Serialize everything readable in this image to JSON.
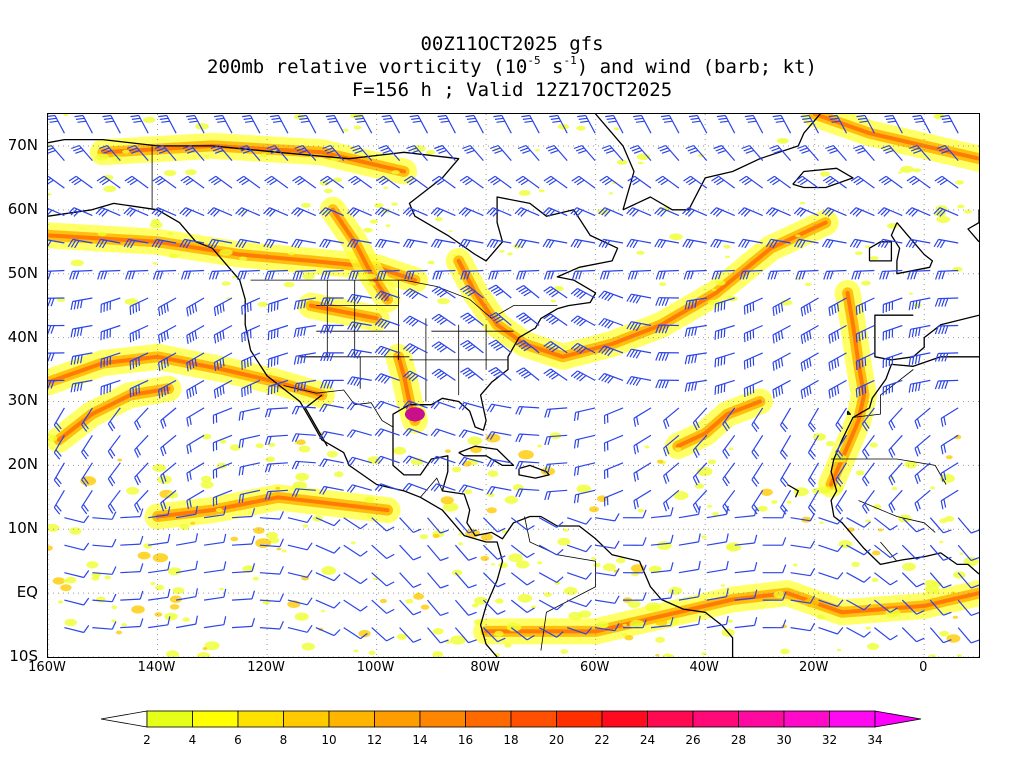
{
  "title": {
    "line1": "00Z11OCT2025 gfs",
    "line2_prefix": "200mb relative vorticity (10",
    "line2_exp1": "-5",
    "line2_mid": " s",
    "line2_exp2": "-1",
    "line2_suffix": ") and wind (barb; kt)",
    "line3": "F=156 h ; Valid 12Z17OCT2025"
  },
  "axes": {
    "lat_labels": [
      "70N",
      "60N",
      "50N",
      "40N",
      "30N",
      "20N",
      "10N",
      "EQ",
      "10S"
    ],
    "lon_labels": [
      "160W",
      "140W",
      "120W",
      "100W",
      "80W",
      "60W",
      "40W",
      "20W",
      "0"
    ],
    "lat_values": [
      70,
      60,
      50,
      40,
      30,
      20,
      10,
      0,
      -10
    ],
    "lon_values": [
      -160,
      -140,
      -120,
      -100,
      -80,
      -60,
      -40,
      -20,
      0
    ],
    "lat_range": [
      -10,
      75
    ],
    "lon_range": [
      -160,
      10
    ],
    "grid": "dotted"
  },
  "colorbar": {
    "labels": [
      "2",
      "4",
      "6",
      "8",
      "10",
      "12",
      "14",
      "16",
      "18",
      "20",
      "22",
      "24",
      "26",
      "28",
      "30",
      "32",
      "34"
    ],
    "colors": [
      "#e5ff19",
      "#ffff00",
      "#ffe100",
      "#ffcb00",
      "#ffb400",
      "#ff9d00",
      "#ff8600",
      "#ff6a00",
      "#ff4f00",
      "#ff2f00",
      "#ff0a1e",
      "#ff0a50",
      "#ff0a78",
      "#ff0aa0",
      "#ff0ac8",
      "#ff0af0"
    ]
  },
  "colors": {
    "barb": "#2b45e8",
    "coast": "#000000",
    "grid": "#9a9a9a"
  }
}
